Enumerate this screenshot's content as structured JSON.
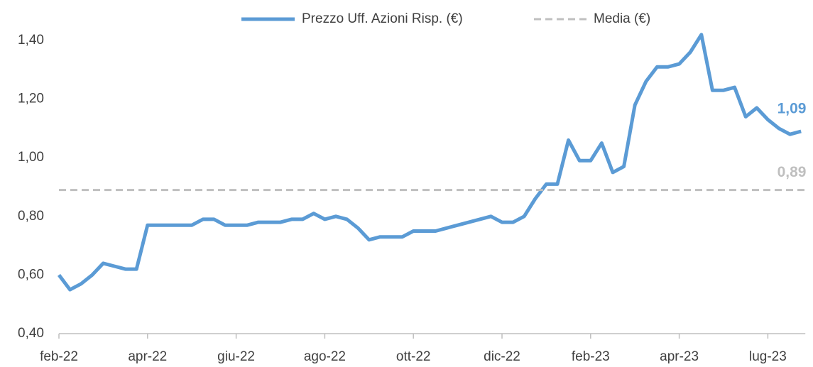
{
  "chart_data": {
    "type": "line",
    "categories": [
      "feb-22",
      null,
      null,
      null,
      null,
      null,
      null,
      null,
      "apr-22",
      null,
      null,
      null,
      null,
      null,
      null,
      null,
      "giu-22",
      null,
      null,
      null,
      null,
      null,
      null,
      null,
      "ago-22",
      null,
      null,
      null,
      null,
      null,
      null,
      null,
      "ott-22",
      null,
      null,
      null,
      null,
      null,
      null,
      null,
      "dic-22",
      null,
      null,
      null,
      null,
      null,
      null,
      null,
      "feb-23",
      null,
      null,
      null,
      null,
      null,
      null,
      null,
      "apr-23",
      null,
      null,
      null,
      null,
      null,
      null,
      null,
      "lug-23",
      null,
      null,
      null
    ],
    "series": [
      {
        "name": "Prezzo Uff. Azioni Risp. (€)",
        "color": "#5b9bd5",
        "end_label": "1,09",
        "values": [
          0.6,
          0.55,
          0.57,
          0.6,
          0.64,
          0.63,
          0.62,
          0.62,
          0.77,
          0.77,
          0.77,
          0.77,
          0.77,
          0.79,
          0.79,
          0.77,
          0.77,
          0.77,
          0.78,
          0.78,
          0.78,
          0.79,
          0.79,
          0.81,
          0.79,
          0.8,
          0.79,
          0.76,
          0.72,
          0.73,
          0.73,
          0.73,
          0.75,
          0.75,
          0.75,
          0.76,
          0.77,
          0.78,
          0.79,
          0.8,
          0.78,
          0.78,
          0.8,
          0.86,
          0.91,
          0.91,
          1.06,
          0.99,
          0.99,
          1.05,
          0.95,
          0.97,
          1.18,
          1.26,
          1.31,
          1.31,
          1.32,
          1.36,
          1.42,
          1.23,
          1.23,
          1.24,
          1.14,
          1.17,
          1.13,
          1.1,
          1.08,
          1.09
        ]
      },
      {
        "name": "Media (€)",
        "color": "#bfbfbf",
        "dashed": true,
        "value": 0.89,
        "end_label": "0,89"
      }
    ],
    "ylim": [
      0.4,
      1.44
    ],
    "yticks": [
      {
        "value": 0.4,
        "label": "0,40"
      },
      {
        "value": 0.6,
        "label": "0,60"
      },
      {
        "value": 0.8,
        "label": "0,80"
      },
      {
        "value": 1.0,
        "label": "1,00"
      },
      {
        "value": 1.2,
        "label": "1,20"
      },
      {
        "value": 1.4,
        "label": "1,40"
      }
    ],
    "grid": false,
    "legend": "top"
  }
}
